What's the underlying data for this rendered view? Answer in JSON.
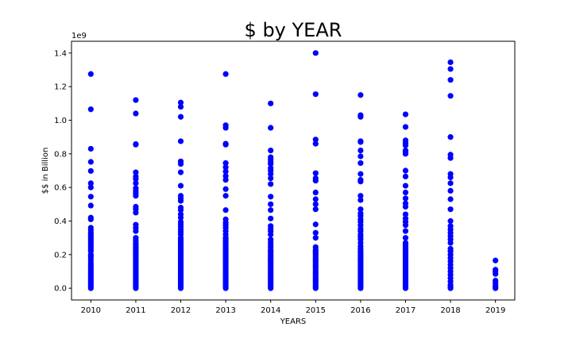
{
  "chart_data": {
    "type": "scatter",
    "title": "$ by YEAR",
    "xlabel": "YEARS",
    "ylabel": "$$ in Billion",
    "y_offset_label": "1e9",
    "x_ticks": [
      2010,
      2011,
      2012,
      2013,
      2014,
      2015,
      2016,
      2017,
      2018,
      2019
    ],
    "y_ticks": [
      0.0,
      0.2,
      0.4,
      0.6,
      0.8,
      1.0,
      1.2,
      1.4
    ],
    "xlim": [
      2009.57,
      2019.43
    ],
    "ylim": [
      -0.07,
      1.47
    ],
    "y_scale_factor": 1000000000,
    "grid": false,
    "marker_color": "#0000ff",
    "series": [
      {
        "x_groups": [
          {
            "x": 2010,
            "y": [
              1.275,
              1.065,
              0.83,
              0.752,
              0.698,
              0.625,
              0.6,
              0.545,
              0.492,
              0.42,
              0.41,
              0.36,
              0.345,
              0.33,
              0.32,
              0.31,
              0.3,
              0.29,
              0.28,
              0.27,
              0.26,
              0.25,
              0.24,
              0.23,
              0.22,
              0.2,
              0.19,
              0.18,
              0.165,
              0.15,
              0.14,
              0.13,
              0.12,
              0.11,
              0.1,
              0.09,
              0.08,
              0.07,
              0.06,
              0.05,
              0.04,
              0.03,
              0.02,
              0.01,
              0.0
            ]
          },
          {
            "x": 2011,
            "y": [
              1.12,
              1.04,
              0.858,
              0.855,
              0.69,
              0.665,
              0.65,
              0.625,
              0.595,
              0.578,
              0.565,
              0.55,
              0.485,
              0.47,
              0.45,
              0.378,
              0.36,
              0.34,
              0.3,
              0.285,
              0.27,
              0.26,
              0.25,
              0.24,
              0.23,
              0.22,
              0.21,
              0.2,
              0.19,
              0.18,
              0.17,
              0.16,
              0.15,
              0.14,
              0.13,
              0.12,
              0.11,
              0.1,
              0.09,
              0.08,
              0.07,
              0.06,
              0.05,
              0.04,
              0.03,
              0.02,
              0.01,
              0.0
            ]
          },
          {
            "x": 2012,
            "y": [
              1.105,
              1.08,
              1.02,
              0.875,
              0.755,
              0.74,
              0.69,
              0.61,
              0.55,
              0.535,
              0.52,
              0.48,
              0.465,
              0.44,
              0.42,
              0.395,
              0.38,
              0.365,
              0.35,
              0.335,
              0.32,
              0.3,
              0.29,
              0.28,
              0.27,
              0.26,
              0.25,
              0.24,
              0.23,
              0.22,
              0.21,
              0.2,
              0.19,
              0.18,
              0.17,
              0.16,
              0.15,
              0.14,
              0.13,
              0.12,
              0.11,
              0.1,
              0.09,
              0.08,
              0.07,
              0.06,
              0.05,
              0.04,
              0.03,
              0.02,
              0.01,
              0.0
            ]
          },
          {
            "x": 2013,
            "y": [
              1.275,
              0.97,
              0.955,
              0.86,
              0.855,
              0.745,
              0.72,
              0.695,
              0.668,
              0.645,
              0.59,
              0.55,
              0.465,
              0.41,
              0.39,
              0.375,
              0.36,
              0.34,
              0.32,
              0.3,
              0.29,
              0.28,
              0.27,
              0.26,
              0.25,
              0.24,
              0.23,
              0.22,
              0.21,
              0.2,
              0.19,
              0.18,
              0.17,
              0.16,
              0.15,
              0.14,
              0.13,
              0.12,
              0.11,
              0.1,
              0.09,
              0.08,
              0.07,
              0.06,
              0.05,
              0.04,
              0.03,
              0.02,
              0.01,
              0.0
            ]
          },
          {
            "x": 2014,
            "y": [
              1.1,
              0.955,
              0.82,
              0.78,
              0.765,
              0.75,
              0.74,
              0.715,
              0.7,
              0.68,
              0.655,
              0.62,
              0.545,
              0.5,
              0.465,
              0.415,
              0.37,
              0.355,
              0.34,
              0.32,
              0.29,
              0.275,
              0.26,
              0.245,
              0.23,
              0.22,
              0.21,
              0.2,
              0.19,
              0.18,
              0.17,
              0.16,
              0.15,
              0.14,
              0.13,
              0.12,
              0.11,
              0.1,
              0.09,
              0.08,
              0.07,
              0.06,
              0.05,
              0.04,
              0.03,
              0.02,
              0.01,
              0.0
            ]
          },
          {
            "x": 2015,
            "y": [
              1.4,
              1.155,
              0.885,
              0.86,
              0.685,
              0.655,
              0.64,
              0.57,
              0.53,
              0.5,
              0.47,
              0.38,
              0.33,
              0.3,
              0.245,
              0.23,
              0.22,
              0.21,
              0.2,
              0.19,
              0.18,
              0.17,
              0.16,
              0.15,
              0.14,
              0.13,
              0.12,
              0.11,
              0.1,
              0.09,
              0.08,
              0.07,
              0.06,
              0.05,
              0.04,
              0.03,
              0.02,
              0.01,
              0.0
            ]
          },
          {
            "x": 2016,
            "y": [
              1.15,
              1.03,
              1.02,
              0.875,
              0.87,
              0.82,
              0.785,
              0.745,
              0.68,
              0.645,
              0.635,
              0.55,
              0.525,
              0.47,
              0.445,
              0.43,
              0.41,
              0.395,
              0.375,
              0.355,
              0.34,
              0.32,
              0.305,
              0.29,
              0.27,
              0.25,
              0.235,
              0.22,
              0.21,
              0.2,
              0.19,
              0.18,
              0.17,
              0.16,
              0.15,
              0.14,
              0.13,
              0.12,
              0.11,
              0.1,
              0.09,
              0.08,
              0.07,
              0.06,
              0.05,
              0.04,
              0.03,
              0.02,
              0.01,
              0.0
            ]
          },
          {
            "x": 2017,
            "y": [
              1.035,
              0.96,
              0.88,
              0.865,
              0.85,
              0.82,
              0.81,
              0.8,
              0.7,
              0.665,
              0.61,
              0.57,
              0.535,
              0.505,
              0.485,
              0.44,
              0.415,
              0.395,
              0.375,
              0.34,
              0.3,
              0.27,
              0.26,
              0.25,
              0.24,
              0.23,
              0.22,
              0.21,
              0.2,
              0.19,
              0.18,
              0.17,
              0.16,
              0.15,
              0.14,
              0.13,
              0.12,
              0.11,
              0.1,
              0.09,
              0.08,
              0.07,
              0.06,
              0.05,
              0.04,
              0.03,
              0.02,
              0.01,
              0.0
            ]
          },
          {
            "x": 2018,
            "y": [
              1.345,
              1.305,
              1.24,
              1.145,
              0.9,
              0.795,
              0.775,
              0.68,
              0.66,
              0.625,
              0.58,
              0.53,
              0.47,
              0.4,
              0.37,
              0.35,
              0.33,
              0.31,
              0.29,
              0.27,
              0.235,
              0.22,
              0.2,
              0.18,
              0.16,
              0.14,
              0.12,
              0.1,
              0.08,
              0.06,
              0.04,
              0.02,
              0.01,
              0.0
            ]
          },
          {
            "x": 2019,
            "y": [
              0.165,
              0.11,
              0.1,
              0.085,
              0.045,
              0.03,
              0.015,
              0.005,
              0.0
            ]
          }
        ]
      }
    ]
  }
}
